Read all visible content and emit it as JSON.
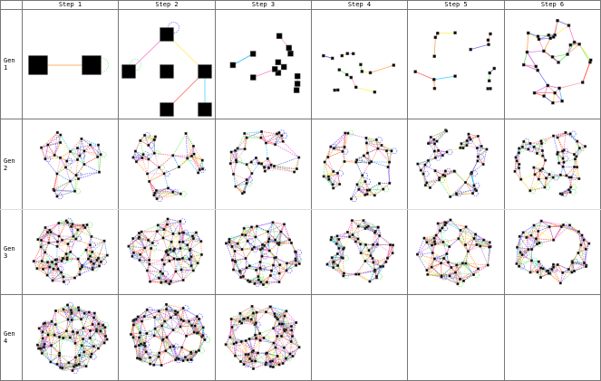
{
  "columns": [
    "Step 1",
    "Step 2",
    "Step 3",
    "Step 4",
    "Step 5",
    "Step 6"
  ],
  "rows": [
    {
      "label": "Gen 1",
      "node_counts": [
        2,
        5,
        13,
        16,
        17,
        30
      ]
    },
    {
      "label": "Gen 2",
      "node_counts": [
        30,
        35,
        40,
        45,
        55,
        60
      ]
    },
    {
      "label": "Gen 3",
      "node_counts": [
        70,
        70,
        75,
        60,
        55,
        55
      ]
    },
    {
      "label": "Gen 4",
      "node_counts": [
        75,
        80,
        80,
        0,
        0,
        0
      ]
    }
  ],
  "edge_colors": [
    "#ff9933",
    "#ffee44",
    "#ff66cc",
    "#cc66ff",
    "#33ccff",
    "#66ee66",
    "#ff5555",
    "#6666ff",
    "#ff99aa"
  ],
  "loop_colors": [
    "#5555ff",
    "#66ee66"
  ]
}
